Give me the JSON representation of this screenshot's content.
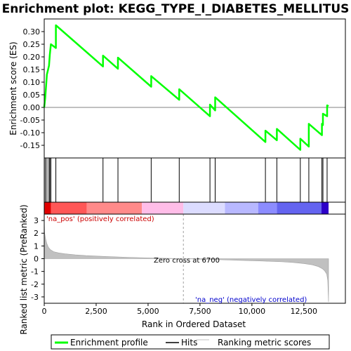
{
  "chart_data": {
    "type": "line",
    "title": "Enrichment plot: KEGG_TYPE_I_DIABETES_MELLITUS",
    "es_panel": {
      "ylabel": "Enrichment score (ES)",
      "ylim": [
        -0.2,
        0.35
      ],
      "yticks": [
        -0.15,
        -0.1,
        -0.05,
        0.0,
        0.05,
        0.1,
        0.15,
        0.2,
        0.25,
        0.3
      ],
      "ytick_labels": [
        "-0.15",
        "-0.10",
        "-0.05",
        "0.00",
        "0.05",
        "0.10",
        "0.15",
        "0.20",
        "0.25",
        "0.30"
      ],
      "series": [
        {
          "name": "Enrichment profile",
          "color": "#00ff00",
          "x": [
            0,
            50,
            50,
            130,
            130,
            230,
            230,
            270,
            270,
            320,
            320,
            560,
            560,
            2830,
            2830,
            3550,
            3550,
            5150,
            5150,
            6500,
            6500,
            7980,
            7980,
            8230,
            8230,
            10650,
            10650,
            11200,
            11200,
            12330,
            12330,
            12740,
            12740,
            13370,
            13370,
            13420,
            13420,
            13620,
            13620,
            13690
          ],
          "y": [
            0.0,
            0.04,
            0.04,
            0.13,
            0.13,
            0.165,
            0.165,
            0.21,
            0.21,
            0.25,
            0.25,
            0.235,
            0.325,
            0.162,
            0.205,
            0.153,
            0.197,
            0.082,
            0.124,
            0.03,
            0.072,
            -0.035,
            0.011,
            -0.012,
            0.04,
            -0.137,
            -0.092,
            -0.13,
            -0.085,
            -0.168,
            -0.124,
            -0.155,
            -0.065,
            -0.11,
            -0.065,
            -0.07,
            -0.025,
            -0.035,
            0.008,
            0.005
          ]
        }
      ]
    },
    "hits": {
      "name": "Hits",
      "positions": [
        50,
        130,
        230,
        270,
        320,
        560,
        2830,
        3550,
        5150,
        6500,
        7980,
        8230,
        10650,
        11200,
        12330,
        12740,
        13370,
        13420,
        13620
      ]
    },
    "rank_panel": {
      "ylabel": "Ranked list metric (PreRanked)",
      "ylim": [
        -3.5,
        3.5
      ],
      "yticks": [
        -3,
        -2,
        -1,
        0,
        1,
        2,
        3
      ],
      "ytick_labels": [
        "-3",
        "-2",
        "-1",
        "0",
        "1",
        "2",
        "3"
      ],
      "series_name": "Ranking metric scores",
      "color": "#c0c0c0",
      "curve_x": [
        0,
        20,
        60,
        120,
        200,
        300,
        450,
        700,
        1000,
        1500,
        2000,
        3000,
        4000,
        5000,
        6000,
        6700,
        7500,
        8500,
        9500,
        10500,
        11500,
        12000,
        12500,
        12900,
        13200,
        13400,
        13500,
        13600,
        13650,
        13690
      ],
      "curve_y": [
        3.1,
        2.0,
        1.6,
        1.2,
        0.9,
        0.7,
        0.55,
        0.45,
        0.38,
        0.3,
        0.24,
        0.17,
        0.11,
        0.06,
        0.02,
        0.0,
        -0.04,
        -0.08,
        -0.13,
        -0.18,
        -0.25,
        -0.3,
        -0.38,
        -0.48,
        -0.62,
        -0.8,
        -0.95,
        -1.2,
        -1.7,
        -3.4
      ],
      "zero_cross_label": "Zero cross at 6700",
      "zero_cross": 6700,
      "pos_label": "'na_pos' (positively correlated)",
      "neg_label": "'na_neg' (negatively correlated)",
      "pos_color": "#cc0000",
      "neg_color": "#0000cc"
    },
    "x_axis": {
      "xlabel": "Rank in Ordered Dataset",
      "xlim": [
        0,
        14500
      ],
      "xticks": [
        0,
        2500,
        5000,
        7500,
        10000,
        12500
      ],
      "xtick_labels": [
        "0",
        "2,500",
        "5,000",
        "7,500",
        "10,000",
        "12,500"
      ],
      "n_genes": 13690
    },
    "colorbar": {
      "segments": [
        {
          "start": 0,
          "end": 320,
          "color": "#e00000"
        },
        {
          "start": 320,
          "end": 2050,
          "color": "#ff5757"
        },
        {
          "start": 2050,
          "end": 4700,
          "color": "#ff8a8a"
        },
        {
          "start": 4700,
          "end": 6700,
          "color": "#ffbde8"
        },
        {
          "start": 6700,
          "end": 8700,
          "color": "#dcdcff"
        },
        {
          "start": 8700,
          "end": 10300,
          "color": "#b8b8ff"
        },
        {
          "start": 10300,
          "end": 11200,
          "color": "#8c8cff"
        },
        {
          "start": 11200,
          "end": 13350,
          "color": "#6464f0"
        },
        {
          "start": 13350,
          "end": 13690,
          "color": "#2d00c8"
        }
      ]
    },
    "legend": {
      "items": [
        {
          "label": "Enrichment profile",
          "color": "#00ff00"
        },
        {
          "label": "Hits",
          "color": "#000000"
        },
        {
          "label": "Ranking metric scores",
          "color": "#c0c0c0"
        }
      ]
    }
  }
}
